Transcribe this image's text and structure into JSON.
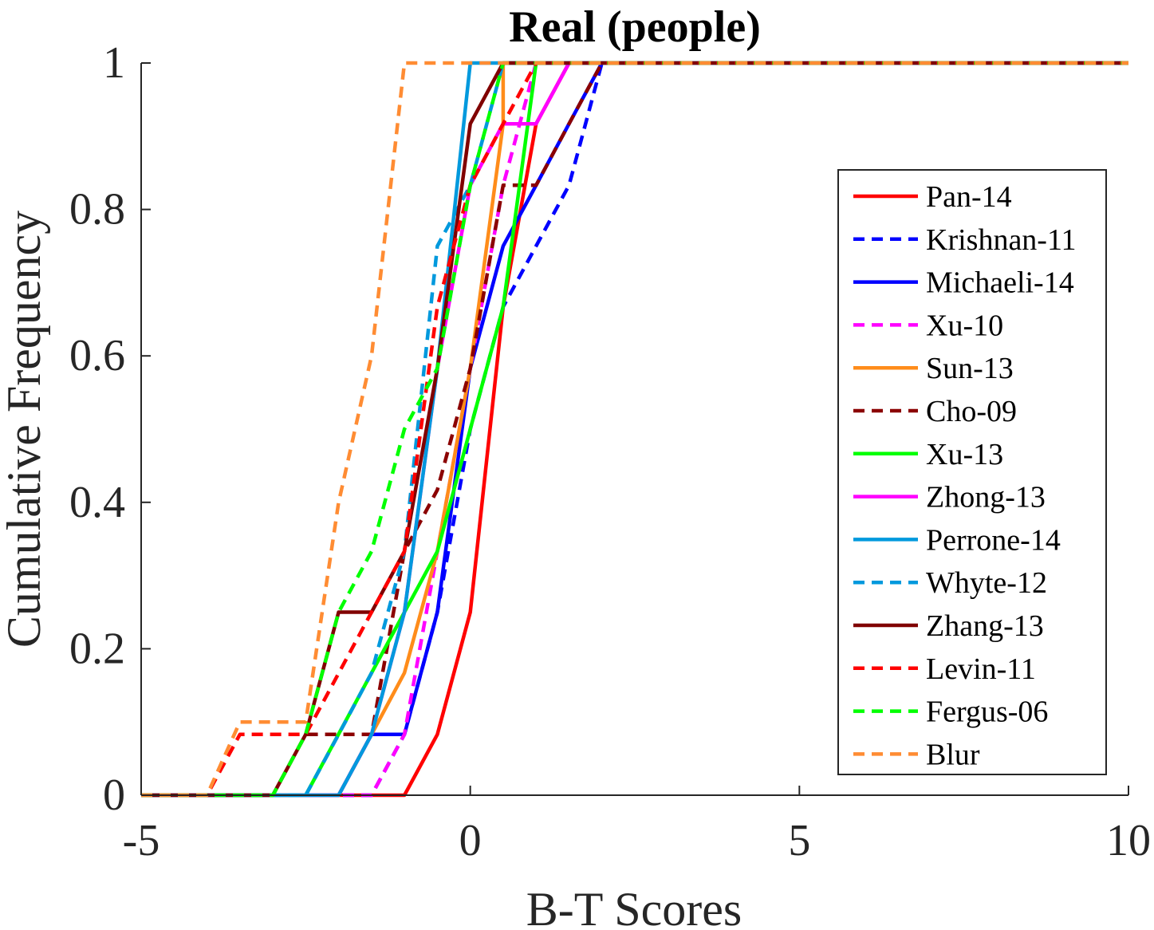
{
  "chart_data": {
    "type": "line",
    "title": "Real (people)",
    "xlabel": "B-T Scores",
    "ylabel": "Cumulative Frequency",
    "xlim": [
      -5,
      10
    ],
    "ylim": [
      0,
      1
    ],
    "xticks": [
      -5,
      0,
      5,
      10
    ],
    "xtick_labels": [
      "-5",
      "0",
      "5",
      "10"
    ],
    "yticks": [
      0,
      0.2,
      0.4,
      0.6,
      0.8,
      1
    ],
    "ytick_labels": [
      "0",
      "0.2",
      "0.4",
      "0.6",
      "0.8",
      "1"
    ],
    "grid": false,
    "legend_position": "right",
    "series": [
      {
        "name": "Pan-14",
        "color": "#ff0000",
        "dash": "solid",
        "x": [
          -5,
          -1,
          -0.5,
          0,
          0.5,
          1,
          1.5,
          2,
          10
        ],
        "y": [
          0,
          0,
          0.083,
          0.25,
          0.667,
          0.917,
          1,
          1,
          1
        ]
      },
      {
        "name": "Krishnan-11",
        "color": "#0000ff",
        "dash": "dash",
        "x": [
          -5,
          -1.5,
          -1,
          -0.5,
          0,
          0.5,
          1,
          1.5,
          2,
          10
        ],
        "y": [
          0,
          0,
          0.083,
          0.25,
          0.5,
          0.667,
          0.75,
          0.833,
          1,
          1
        ]
      },
      {
        "name": "Michaeli-14",
        "color": "#0000ff",
        "dash": "solid",
        "x": [
          -5,
          -2,
          -1.5,
          -1,
          -0.5,
          0,
          0.5,
          1,
          1.5,
          2,
          10
        ],
        "y": [
          0,
          0,
          0.083,
          0.083,
          0.25,
          0.583,
          0.75,
          0.833,
          0.917,
          1,
          1
        ]
      },
      {
        "name": "Xu-10",
        "color": "#ff00ff",
        "dash": "dash",
        "x": [
          -5,
          -1.5,
          -1,
          -0.5,
          0,
          0.5,
          1,
          10
        ],
        "y": [
          0,
          0,
          0.083,
          0.333,
          0.583,
          0.833,
          1,
          1
        ]
      },
      {
        "name": "Sun-13",
        "color": "#ff8c1a",
        "dash": "solid",
        "x": [
          -5,
          -2,
          -1.5,
          -1,
          -0.5,
          0,
          0.5,
          0.5,
          10
        ],
        "y": [
          0,
          0,
          0.083,
          0.167,
          0.333,
          0.583,
          0.917,
          1,
          1
        ]
      },
      {
        "name": "Cho-09",
        "color": "#8b0000",
        "dash": "dash",
        "x": [
          -5,
          -3,
          -2.5,
          -2,
          -1.5,
          -1,
          -0.5,
          0,
          0.5,
          1,
          1.5,
          2,
          10
        ],
        "y": [
          0,
          0,
          0.083,
          0.083,
          0.083,
          0.333,
          0.417,
          0.583,
          0.833,
          0.833,
          0.917,
          1,
          1
        ]
      },
      {
        "name": "Xu-13",
        "color": "#00ff00",
        "dash": "solid",
        "x": [
          -5,
          -2.5,
          -1.5,
          -0.5,
          0,
          0.5,
          1,
          10
        ],
        "y": [
          0,
          0,
          0.167,
          0.333,
          0.5,
          0.667,
          1,
          1
        ]
      },
      {
        "name": "Zhong-13",
        "color": "#ff00ff",
        "dash": "solid",
        "x": [
          -5,
          -2,
          -1.5,
          -1,
          -0.5,
          0,
          0.5,
          1,
          1.5,
          10
        ],
        "y": [
          0,
          0,
          0.083,
          0.25,
          0.583,
          0.833,
          0.917,
          0.917,
          1,
          1
        ]
      },
      {
        "name": "Perrone-14",
        "color": "#0099dd",
        "dash": "solid",
        "x": [
          -5,
          -2,
          -1.5,
          -1,
          -0.5,
          0,
          0.5,
          10
        ],
        "y": [
          0,
          0,
          0.083,
          0.25,
          0.583,
          1,
          1,
          1
        ]
      },
      {
        "name": "Whyte-12",
        "color": "#0099dd",
        "dash": "dash",
        "x": [
          -5,
          -2.5,
          -2,
          -1.5,
          -1,
          -0.5,
          0,
          0.5,
          10
        ],
        "y": [
          0,
          0,
          0.083,
          0.167,
          0.333,
          0.75,
          0.833,
          1,
          1
        ]
      },
      {
        "name": "Zhang-13",
        "color": "#800000",
        "dash": "solid",
        "x": [
          -5,
          -3,
          -2.5,
          -2,
          -1.5,
          -1,
          -0.5,
          0,
          0.5,
          10
        ],
        "y": [
          0,
          0,
          0.083,
          0.25,
          0.25,
          0.333,
          0.583,
          0.917,
          1,
          1
        ]
      },
      {
        "name": "Levin-11",
        "color": "#ff0000",
        "dash": "dash",
        "x": [
          -5,
          -4,
          -3.5,
          -2.5,
          -1.5,
          -1,
          -0.5,
          0,
          0.5,
          1,
          10
        ],
        "y": [
          0,
          0,
          0.083,
          0.083,
          0.25,
          0.333,
          0.667,
          0.833,
          0.917,
          1,
          1
        ]
      },
      {
        "name": "Fergus-06",
        "color": "#00ff00",
        "dash": "dash",
        "x": [
          -5,
          -3,
          -2.5,
          -2,
          -1.5,
          -1,
          -0.5,
          0,
          0.5,
          10
        ],
        "y": [
          0,
          0,
          0.083,
          0.25,
          0.333,
          0.5,
          0.583,
          0.833,
          1,
          1
        ]
      },
      {
        "name": "Blur",
        "color": "#ff8c33",
        "dash": "dash",
        "x": [
          -5,
          -4,
          -3.5,
          -2.5,
          -2,
          -1.5,
          -1,
          10
        ],
        "y": [
          0,
          0,
          0.1,
          0.1,
          0.4,
          0.6,
          1,
          1
        ]
      }
    ]
  }
}
